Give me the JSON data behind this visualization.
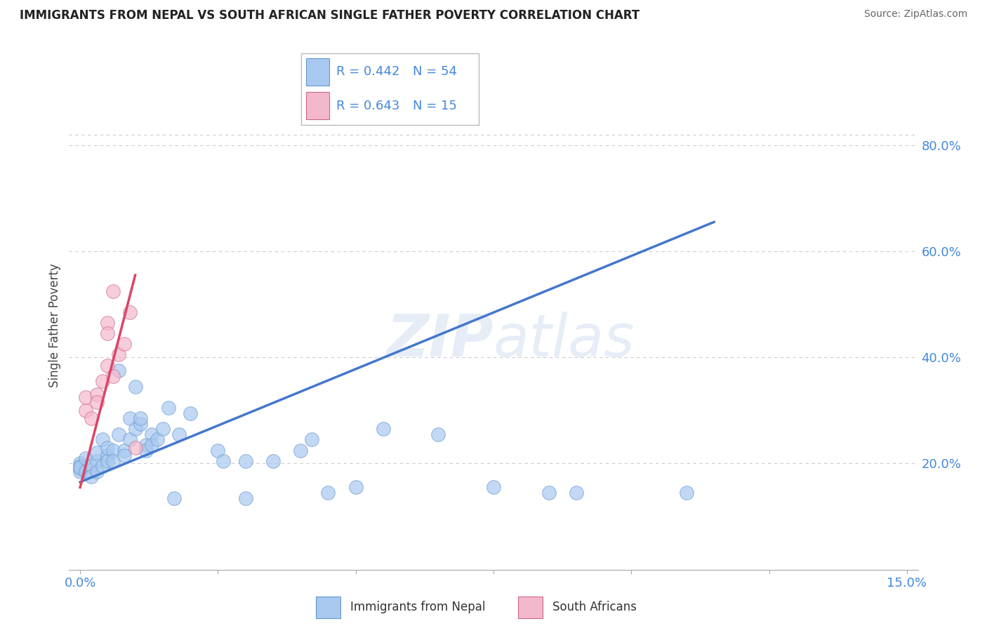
{
  "title": "IMMIGRANTS FROM NEPAL VS SOUTH AFRICAN SINGLE FATHER POVERTY CORRELATION CHART",
  "source": "Source: ZipAtlas.com",
  "ylabel": "Single Father Poverty",
  "watermark": "ZIPatlas",
  "legend_blue_r": "0.442",
  "legend_blue_n": "54",
  "legend_pink_r": "0.643",
  "legend_pink_n": "15",
  "legend_blue_label": "Immigrants from Nepal",
  "legend_pink_label": "South Africans",
  "blue_color": "#a8c8f0",
  "pink_color": "#f4b8cc",
  "blue_edge_color": "#6699cc",
  "pink_edge_color": "#cc6688",
  "blue_line_color": "#4477cc",
  "pink_line_color": "#dd4466",
  "grid_color": "#cccccc",
  "axis_label_color": "#4488dd",
  "title_color": "#222222",
  "source_color": "#666666",
  "ylabel_color": "#444444",
  "blue_scatter": [
    [
      0.0,
      0.19
    ],
    [
      0.0,
      0.2
    ],
    [
      0.0,
      0.185
    ],
    [
      0.0,
      0.195
    ],
    [
      0.0,
      0.193
    ],
    [
      0.001,
      0.185
    ],
    [
      0.001,
      0.21
    ],
    [
      0.002,
      0.195
    ],
    [
      0.002,
      0.175
    ],
    [
      0.003,
      0.205
    ],
    [
      0.003,
      0.22
    ],
    [
      0.003,
      0.185
    ],
    [
      0.004,
      0.245
    ],
    [
      0.004,
      0.195
    ],
    [
      0.005,
      0.215
    ],
    [
      0.005,
      0.205
    ],
    [
      0.005,
      0.23
    ],
    [
      0.006,
      0.225
    ],
    [
      0.006,
      0.205
    ],
    [
      0.007,
      0.255
    ],
    [
      0.007,
      0.375
    ],
    [
      0.008,
      0.225
    ],
    [
      0.008,
      0.215
    ],
    [
      0.009,
      0.285
    ],
    [
      0.009,
      0.245
    ],
    [
      0.01,
      0.345
    ],
    [
      0.01,
      0.265
    ],
    [
      0.011,
      0.275
    ],
    [
      0.011,
      0.285
    ],
    [
      0.012,
      0.235
    ],
    [
      0.012,
      0.225
    ],
    [
      0.013,
      0.255
    ],
    [
      0.013,
      0.235
    ],
    [
      0.014,
      0.245
    ],
    [
      0.015,
      0.265
    ],
    [
      0.016,
      0.305
    ],
    [
      0.017,
      0.135
    ],
    [
      0.018,
      0.255
    ],
    [
      0.02,
      0.295
    ],
    [
      0.025,
      0.225
    ],
    [
      0.026,
      0.205
    ],
    [
      0.03,
      0.205
    ],
    [
      0.03,
      0.135
    ],
    [
      0.035,
      0.205
    ],
    [
      0.04,
      0.225
    ],
    [
      0.042,
      0.245
    ],
    [
      0.045,
      0.145
    ],
    [
      0.05,
      0.155
    ],
    [
      0.055,
      0.265
    ],
    [
      0.065,
      0.255
    ],
    [
      0.075,
      0.155
    ],
    [
      0.085,
      0.145
    ],
    [
      0.09,
      0.145
    ],
    [
      0.11,
      0.145
    ]
  ],
  "pink_scatter": [
    [
      0.001,
      0.3
    ],
    [
      0.001,
      0.325
    ],
    [
      0.002,
      0.285
    ],
    [
      0.003,
      0.33
    ],
    [
      0.003,
      0.315
    ],
    [
      0.004,
      0.355
    ],
    [
      0.005,
      0.385
    ],
    [
      0.005,
      0.465
    ],
    [
      0.005,
      0.445
    ],
    [
      0.006,
      0.365
    ],
    [
      0.006,
      0.525
    ],
    [
      0.007,
      0.405
    ],
    [
      0.008,
      0.425
    ],
    [
      0.009,
      0.485
    ],
    [
      0.01,
      0.23
    ]
  ],
  "blue_trendline_x": [
    0.0,
    0.115
  ],
  "blue_trendline_y": [
    0.165,
    0.655
  ],
  "pink_trendline_x": [
    0.0,
    0.01
  ],
  "pink_trendline_y": [
    0.155,
    0.555
  ],
  "dashed_line_y": 0.82,
  "xlim": [
    -0.002,
    0.152
  ],
  "ylim": [
    0.0,
    0.92
  ],
  "xtick_vals": [
    0.0,
    0.025,
    0.05,
    0.075,
    0.1,
    0.125,
    0.15
  ],
  "xtick_labels": [
    "0.0%",
    "",
    "",
    "",
    "",
    "",
    "15.0%"
  ],
  "ytick_right_vals": [
    0.2,
    0.4,
    0.6,
    0.8
  ],
  "ytick_right_labels": [
    "20.0%",
    "40.0%",
    "60.0%",
    "80.0%"
  ],
  "grid_dashes": [
    4,
    4
  ]
}
